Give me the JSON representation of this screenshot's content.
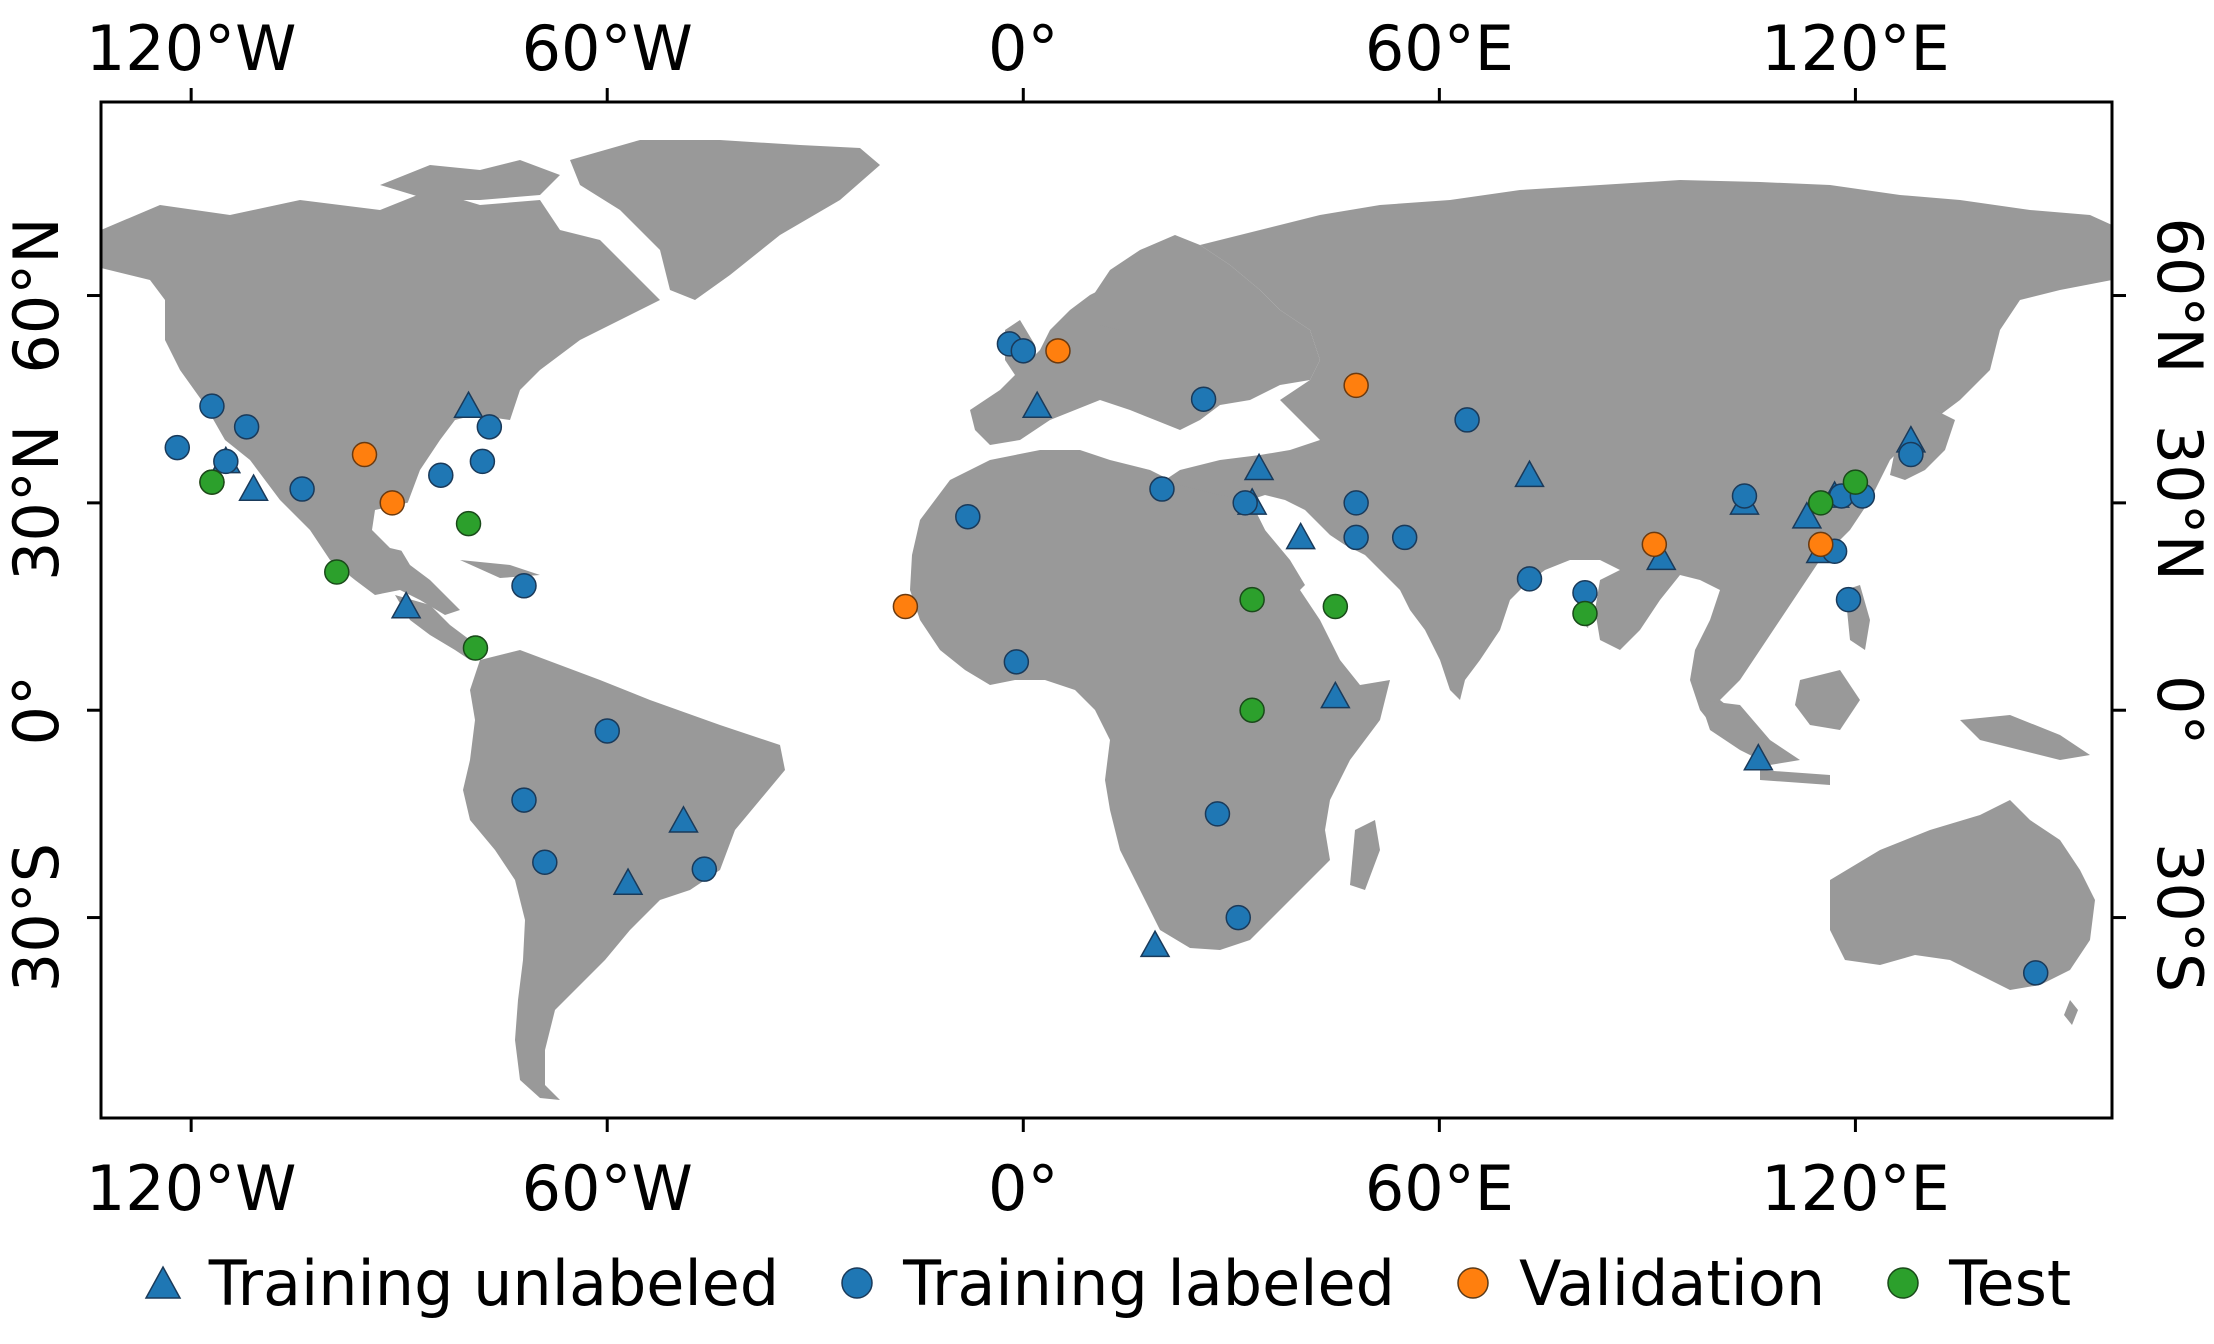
{
  "map": {
    "projection": "equirectangular",
    "x_ticks": [
      {
        "value": -120,
        "label": "120°W"
      },
      {
        "value": -60,
        "label": "60°W"
      },
      {
        "value": 0,
        "label": "0°"
      },
      {
        "value": 60,
        "label": "60°E"
      },
      {
        "value": 120,
        "label": "120°E"
      }
    ],
    "y_ticks": [
      {
        "value": 60,
        "label": "60°N"
      },
      {
        "value": 30,
        "label": "30°N"
      },
      {
        "value": 0,
        "label": "0°"
      },
      {
        "value": -30,
        "label": "30°S"
      }
    ],
    "xlim": [
      -133,
      157
    ],
    "ylim": [
      -59,
      88
    ],
    "colors": {
      "land": "#999999",
      "ocean": "#ffffff",
      "training_unlabeled": "#1f77b4",
      "training_labeled": "#1f77b4",
      "validation": "#ff7f0e",
      "test": "#2ca02c"
    }
  },
  "legend": {
    "items": [
      {
        "key": "training_unlabeled",
        "label": "Training unlabeled",
        "marker": "triangle"
      },
      {
        "key": "training_labeled",
        "label": "Training labeled",
        "marker": "circle"
      },
      {
        "key": "validation",
        "label": "Validation",
        "marker": "circle"
      },
      {
        "key": "test",
        "label": "Test",
        "marker": "circle"
      }
    ]
  },
  "chart_data": {
    "type": "scatter",
    "series": [
      {
        "name": "Training unlabeled",
        "marker": "triangle",
        "color": "#1f77b4",
        "points": [
          [
            -115,
            36
          ],
          [
            -111,
            32
          ],
          [
            -80,
            44
          ],
          [
            -89,
            15
          ],
          [
            2,
            44
          ],
          [
            33,
            30
          ],
          [
            34,
            35
          ],
          [
            40,
            25
          ],
          [
            73,
            34
          ],
          [
            92,
            22
          ],
          [
            104,
            30
          ],
          [
            113,
            28
          ],
          [
            115,
            23
          ],
          [
            117,
            31
          ],
          [
            128,
            39
          ],
          [
            106,
            -7
          ],
          [
            45,
            2
          ],
          [
            19,
            -34
          ],
          [
            -57,
            -25
          ],
          [
            -49,
            -16
          ]
        ]
      },
      {
        "name": "Training labeled",
        "marker": "circle",
        "color": "#1f77b4",
        "points": [
          [
            -122,
            38
          ],
          [
            -117,
            44
          ],
          [
            -112,
            41
          ],
          [
            -115,
            36
          ],
          [
            -104,
            32
          ],
          [
            -84,
            34
          ],
          [
            -77,
            41
          ],
          [
            -78,
            36
          ],
          [
            -72,
            18
          ],
          [
            -60,
            -3
          ],
          [
            -72,
            -13
          ],
          [
            -69,
            -22
          ],
          [
            -46,
            -23
          ],
          [
            -8,
            28
          ],
          [
            -2,
            53
          ],
          [
            0,
            52
          ],
          [
            -1,
            7
          ],
          [
            26,
            45
          ],
          [
            20,
            32
          ],
          [
            32,
            30
          ],
          [
            48,
            25
          ],
          [
            48,
            30
          ],
          [
            55,
            25
          ],
          [
            64,
            42
          ],
          [
            73,
            19
          ],
          [
            81,
            17
          ],
          [
            104,
            31
          ],
          [
            117,
            23
          ],
          [
            118,
            31
          ],
          [
            121,
            31
          ],
          [
            119,
            16
          ],
          [
            128,
            37
          ],
          [
            28,
            -15
          ],
          [
            31,
            -30
          ],
          [
            146,
            -38
          ]
        ]
      },
      {
        "name": "Validation",
        "marker": "circle",
        "color": "#ff7f0e",
        "points": [
          [
            -117,
            33
          ],
          [
            -95,
            37
          ],
          [
            -91,
            30
          ],
          [
            5,
            52
          ],
          [
            48,
            47
          ],
          [
            -17,
            15
          ],
          [
            91,
            24
          ],
          [
            115,
            24
          ]
        ]
      },
      {
        "name": "Test",
        "marker": "circle",
        "color": "#2ca02c",
        "points": [
          [
            -117,
            33
          ],
          [
            -99,
            20
          ],
          [
            -80,
            27
          ],
          [
            -79,
            9
          ],
          [
            33,
            16
          ],
          [
            33,
            0
          ],
          [
            45,
            15
          ],
          [
            81,
            14
          ],
          [
            115,
            30
          ],
          [
            120,
            33
          ]
        ]
      }
    ]
  }
}
